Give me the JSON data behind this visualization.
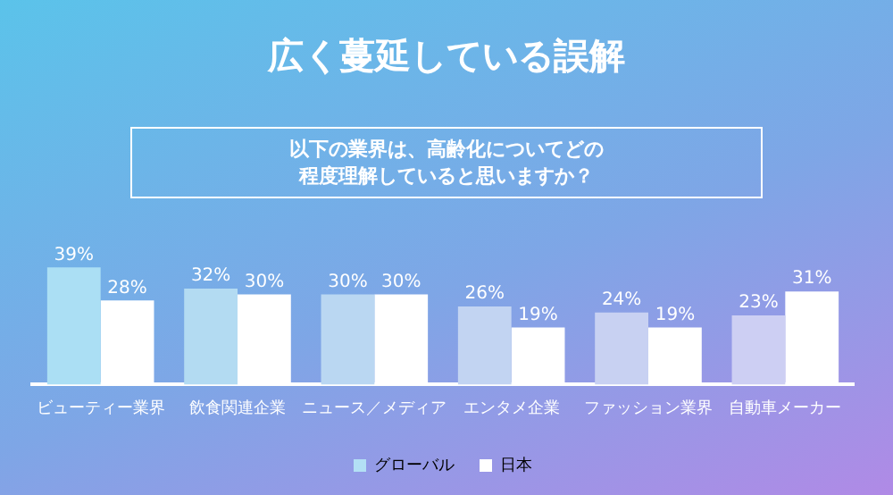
{
  "chart_data": {
    "type": "bar",
    "title": "広く蔓延している誤解",
    "subtitle": "以下の業界は、高齢化についてどの程度理解していると思いますか？",
    "categories": [
      "ビューティー業界",
      "飲食関連企業",
      "ニュース／メディア",
      "エンタメ企業",
      "ファッション業界",
      "自動車メーカー"
    ],
    "series": [
      {
        "name": "グローバル",
        "color": "#b3e0f5",
        "colors": [
          "#abdff4",
          "#b3dbf2",
          "#bad7f2",
          "#c2d4f2",
          "#c8d1f2",
          "#cdcff3"
        ],
        "values": [
          39,
          32,
          30,
          26,
          24,
          23
        ],
        "value_labels": [
          "39%",
          "32%",
          "30%",
          "26%",
          "24%",
          "23%"
        ]
      },
      {
        "name": "日本",
        "color": "#ffffff",
        "values": [
          28,
          30,
          30,
          19,
          19,
          31
        ],
        "value_labels": [
          "28%",
          "30%",
          "30%",
          "19%",
          "19%",
          "31%"
        ]
      }
    ],
    "legend": "bottom"
  }
}
